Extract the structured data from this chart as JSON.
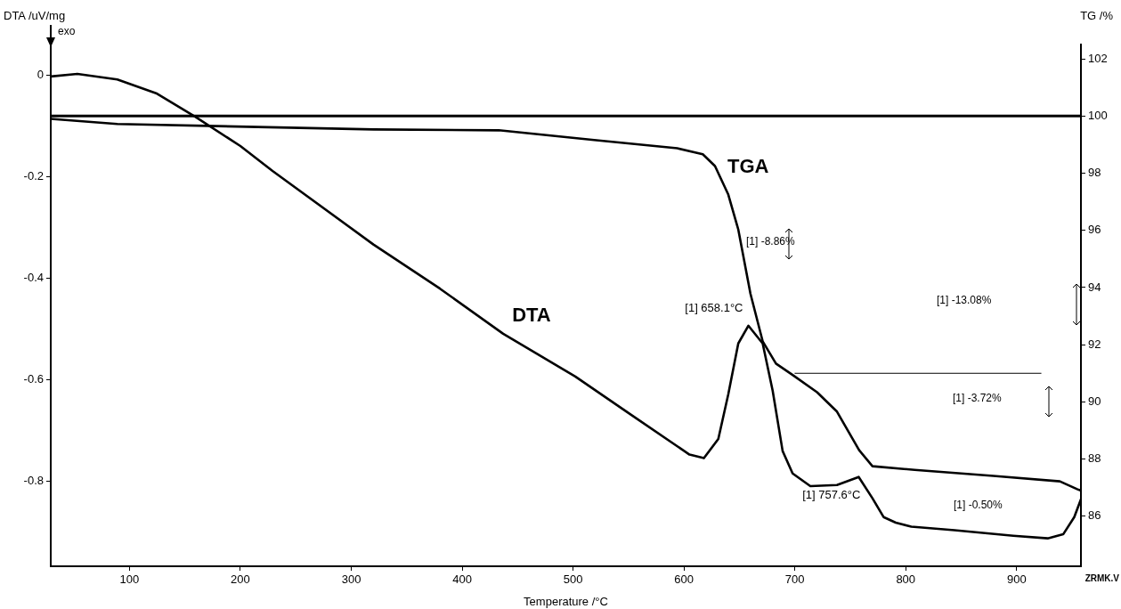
{
  "chart_data": {
    "type": "line",
    "xlabel": "Temperature /°C",
    "ylabel": "DTA /uV/mg",
    "y2label": "TG /%",
    "xlim": [
      29,
      958
    ],
    "xticks": [
      100,
      200,
      300,
      400,
      500,
      600,
      700,
      800,
      900
    ],
    "ylim": [
      -0.967,
      0.061
    ],
    "yticks": [
      -0.8,
      -0.6,
      -0.4,
      -0.2,
      0
    ],
    "y2lim": [
      84.25,
      102.5
    ],
    "y2ticks": [
      86,
      88,
      90,
      92,
      94,
      96,
      98,
      100,
      102
    ],
    "legend": false,
    "grid": false,
    "marker": "none",
    "line_style": "solid",
    "series": [
      {
        "name": "DTA",
        "color": "#000000",
        "x": [
          29,
          53,
          89,
          124,
          159,
          200,
          229,
          320,
          380,
          437,
          502,
          550,
          605,
          618,
          631,
          640,
          649,
          658.1,
          671,
          680,
          689,
          698,
          714,
          738,
          757.6,
          770,
          780,
          791,
          805,
          844,
          897,
          928,
          942,
          952,
          958
        ],
        "values": [
          -0.002,
          0.003,
          -0.008,
          -0.035,
          -0.081,
          -0.139,
          -0.188,
          -0.333,
          -0.42,
          -0.509,
          -0.593,
          -0.665,
          -0.747,
          -0.754,
          -0.716,
          -0.628,
          -0.528,
          -0.493,
          -0.528,
          -0.621,
          -0.74,
          -0.784,
          -0.809,
          -0.807,
          -0.791,
          -0.833,
          -0.87,
          -0.881,
          -0.889,
          -0.896,
          -0.907,
          -0.912,
          -0.904,
          -0.87,
          -0.835
        ]
      },
      {
        "name": "TGA",
        "color": "#000000",
        "axis": "y2",
        "x": [
          29,
          89,
          320,
          433,
          519,
          594,
          617,
          628,
          640,
          649,
          660,
          671,
          683,
          698,
          720,
          738,
          758,
          770,
          808,
          879,
          939,
          955,
          958
        ],
        "values": [
          99.9,
          99.72,
          99.53,
          99.5,
          99.16,
          98.87,
          98.66,
          98.25,
          97.25,
          96.03,
          93.78,
          92.12,
          91.34,
          90.94,
          90.34,
          89.66,
          88.31,
          87.75,
          87.62,
          87.41,
          87.22,
          86.94,
          86.9
        ]
      },
      {
        "type": "line",
        "color": "#000000",
        "axis": "y2",
        "x": [
          700,
          922
        ],
        "values": [
          91.0,
          91.0
        ]
      }
    ],
    "ref_lines": [
      {
        "axis": "y2",
        "value": 100,
        "color": "#000000"
      }
    ],
    "annotations": [
      "exo",
      {
        "text": "[1] 658.1°C",
        "x": 658.1,
        "y": -0.493
      },
      {
        "text": "[1] 757.6°C",
        "x": 757.6,
        "y": -0.791
      },
      "[1] -8.86%",
      "[1] -13.08%",
      "[1] -3.72%",
      "[1] -0.50%",
      "ZRMK.V"
    ]
  }
}
